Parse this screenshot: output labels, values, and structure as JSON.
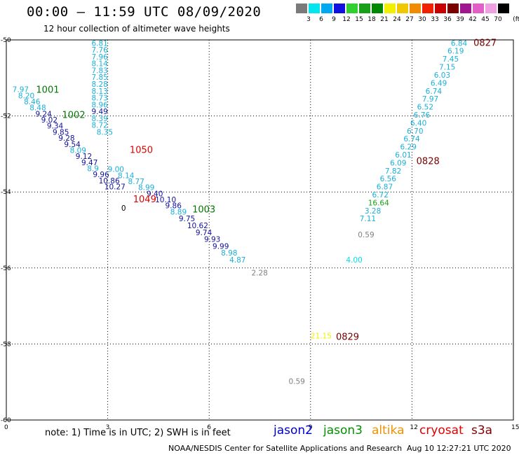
{
  "title": "00:00 – 11:59 UTC 08/09/2020",
  "subtitle": "12 hour collection of altimeter wave heights",
  "color_scale": {
    "unit": "(ft)",
    "labels": [
      "3",
      "6",
      "9",
      "12",
      "15",
      "18",
      "21",
      "24",
      "27",
      "30",
      "33",
      "36",
      "39",
      "42",
      "45",
      "70"
    ],
    "colors": [
      "#7a7a7a",
      "#00e5ee",
      "#00a8f0",
      "#1010e0",
      "#30d030",
      "#18a018",
      "#008800",
      "#f0f000",
      "#f0c800",
      "#f08c00",
      "#f02000",
      "#c80000",
      "#7a0000",
      "#a01890",
      "#e060c8",
      "#f0a0e0",
      "#000000"
    ]
  },
  "map": {
    "x_ticks": [
      "0",
      "3",
      "6",
      "9",
      "12",
      "15"
    ],
    "y_ticks": [
      "-50",
      "-52",
      "-54",
      "-56",
      "-58",
      "-60"
    ],
    "x_range": [
      0,
      15
    ],
    "y_range": [
      -50,
      -60
    ]
  },
  "observations": [
    {
      "v": "6.81",
      "lon": 2.52,
      "lat": -50.08,
      "c": "#1ab0d8"
    },
    {
      "v": "7.76",
      "lon": 2.52,
      "lat": -50.26,
      "c": "#1ab0d8"
    },
    {
      "v": "7.96",
      "lon": 2.52,
      "lat": -50.44,
      "c": "#1ab0d8"
    },
    {
      "v": "8.14",
      "lon": 2.52,
      "lat": -50.62,
      "c": "#1ab0d8"
    },
    {
      "v": "7.83",
      "lon": 2.52,
      "lat": -50.8,
      "c": "#1ab0d8"
    },
    {
      "v": "7.85",
      "lon": 2.52,
      "lat": -50.98,
      "c": "#1ab0d8"
    },
    {
      "v": "8.28",
      "lon": 2.52,
      "lat": -51.16,
      "c": "#1ab0d8"
    },
    {
      "v": "8.13",
      "lon": 2.52,
      "lat": -51.34,
      "c": "#1ab0d8"
    },
    {
      "v": "8.73",
      "lon": 2.52,
      "lat": -51.52,
      "c": "#1ab0d8"
    },
    {
      "v": "8.96",
      "lon": 2.52,
      "lat": -51.7,
      "c": "#1ab0d8"
    },
    {
      "v": "9.49",
      "lon": 2.52,
      "lat": -51.88,
      "c": "#1010a0"
    },
    {
      "v": "8.39",
      "lon": 2.52,
      "lat": -52.06,
      "c": "#1ab0d8"
    },
    {
      "v": "8.72",
      "lon": 2.52,
      "lat": -52.24,
      "c": "#1ab0d8"
    },
    {
      "v": "8.35",
      "lon": 2.67,
      "lat": -52.42,
      "c": "#1ab0d8"
    },
    {
      "v": "7.97",
      "lon": 0.18,
      "lat": -51.3,
      "c": "#1ab0d8"
    },
    {
      "v": "8.20",
      "lon": 0.35,
      "lat": -51.46,
      "c": "#1ab0d8"
    },
    {
      "v": "8.46",
      "lon": 0.52,
      "lat": -51.62,
      "c": "#1ab0d8"
    },
    {
      "v": "8.48",
      "lon": 0.69,
      "lat": -51.78,
      "c": "#1ab0d8"
    },
    {
      "v": "9.24",
      "lon": 0.86,
      "lat": -51.94,
      "c": "#1010a0"
    },
    {
      "v": "9.02",
      "lon": 1.03,
      "lat": -52.1,
      "c": "#1010a0"
    },
    {
      "v": "9.34",
      "lon": 1.2,
      "lat": -52.26,
      "c": "#1010a0"
    },
    {
      "v": "9.85",
      "lon": 1.37,
      "lat": -52.42,
      "c": "#1010a0"
    },
    {
      "v": "9.28",
      "lon": 1.54,
      "lat": -52.58,
      "c": "#1010a0"
    },
    {
      "v": "9.54",
      "lon": 1.71,
      "lat": -52.74,
      "c": "#1010a0"
    },
    {
      "v": "8.09",
      "lon": 1.88,
      "lat": -52.9,
      "c": "#1ab0d8"
    },
    {
      "v": "9.12",
      "lon": 2.05,
      "lat": -53.06,
      "c": "#1010a0"
    },
    {
      "v": "9.47",
      "lon": 2.22,
      "lat": -53.22,
      "c": "#1010a0"
    },
    {
      "v": "8.9",
      "lon": 2.39,
      "lat": -53.38,
      "c": "#1ab0d8"
    },
    {
      "v": "9.96",
      "lon": 2.56,
      "lat": -53.54,
      "c": "#1010a0"
    },
    {
      "v": "10.86",
      "lon": 2.73,
      "lat": -53.7,
      "c": "#1010a0"
    },
    {
      "v": "10.27",
      "lon": 2.9,
      "lat": -53.86,
      "c": "#1010a0"
    },
    {
      "v": "9.00",
      "lon": 3.0,
      "lat": -53.4,
      "c": "#1ab0d8"
    },
    {
      "v": "8.14",
      "lon": 3.3,
      "lat": -53.56,
      "c": "#1ab0d8"
    },
    {
      "v": "8.77",
      "lon": 3.6,
      "lat": -53.72,
      "c": "#1ab0d8"
    },
    {
      "v": "8.99",
      "lon": 3.9,
      "lat": -53.88,
      "c": "#1ab0d8"
    },
    {
      "v": "9.40",
      "lon": 4.15,
      "lat": -54.04,
      "c": "#1010a0"
    },
    {
      "v": "10.10",
      "lon": 4.4,
      "lat": -54.2,
      "c": "#1010a0"
    },
    {
      "v": "9.86",
      "lon": 4.7,
      "lat": -54.36,
      "c": "#1010a0"
    },
    {
      "v": "8.89",
      "lon": 4.85,
      "lat": -54.52,
      "c": "#1ab0d8"
    },
    {
      "v": "9.75",
      "lon": 5.1,
      "lat": -54.7,
      "c": "#1010a0"
    },
    {
      "v": "10.62",
      "lon": 5.35,
      "lat": -54.88,
      "c": "#1010a0"
    },
    {
      "v": "9.74",
      "lon": 5.6,
      "lat": -55.06,
      "c": "#1010a0"
    },
    {
      "v": "9.93",
      "lon": 5.85,
      "lat": -55.24,
      "c": "#1010a0"
    },
    {
      "v": "9.99",
      "lon": 6.1,
      "lat": -55.42,
      "c": "#1010a0"
    },
    {
      "v": "8.98",
      "lon": 6.35,
      "lat": -55.6,
      "c": "#1ab0d8"
    },
    {
      "v": "4.87",
      "lon": 6.6,
      "lat": -55.78,
      "c": "#1ab0d8"
    },
    {
      "v": "2.28",
      "lon": 7.25,
      "lat": -56.12,
      "c": "#808080"
    },
    {
      "v": "6.84",
      "lon": 13.15,
      "lat": -50.08,
      "c": "#1ab0d8"
    },
    {
      "v": "6.19",
      "lon": 13.05,
      "lat": -50.29,
      "c": "#1ab0d8"
    },
    {
      "v": "7.45",
      "lon": 12.9,
      "lat": -50.5,
      "c": "#1ab0d8"
    },
    {
      "v": "7.15",
      "lon": 12.8,
      "lat": -50.71,
      "c": "#1ab0d8"
    },
    {
      "v": "6.03",
      "lon": 12.65,
      "lat": -50.92,
      "c": "#1ab0d8"
    },
    {
      "v": "6.49",
      "lon": 12.55,
      "lat": -51.13,
      "c": "#1ab0d8"
    },
    {
      "v": "6.74",
      "lon": 12.4,
      "lat": -51.34,
      "c": "#1ab0d8"
    },
    {
      "v": "7.97",
      "lon": 12.3,
      "lat": -51.55,
      "c": "#1ab0d8"
    },
    {
      "v": "6.52",
      "lon": 12.15,
      "lat": -51.76,
      "c": "#1ab0d8"
    },
    {
      "v": "6.76",
      "lon": 12.05,
      "lat": -51.97,
      "c": "#1ab0d8"
    },
    {
      "v": "6.40",
      "lon": 11.95,
      "lat": -52.18,
      "c": "#1ab0d8"
    },
    {
      "v": "6.70",
      "lon": 11.85,
      "lat": -52.39,
      "c": "#1ab0d8"
    },
    {
      "v": "6.74",
      "lon": 11.75,
      "lat": -52.6,
      "c": "#1ab0d8"
    },
    {
      "v": "6.29",
      "lon": 11.65,
      "lat": -52.81,
      "c": "#1ab0d8"
    },
    {
      "v": "6.01",
      "lon": 11.5,
      "lat": -53.02,
      "c": "#1ab0d8"
    },
    {
      "v": "6.09",
      "lon": 11.35,
      "lat": -53.23,
      "c": "#1ab0d8"
    },
    {
      "v": "7.82",
      "lon": 11.2,
      "lat": -53.44,
      "c": "#1ab0d8"
    },
    {
      "v": "6.56",
      "lon": 11.05,
      "lat": -53.65,
      "c": "#1ab0d8"
    },
    {
      "v": "6.87",
      "lon": 10.95,
      "lat": -53.86,
      "c": "#1ab0d8"
    },
    {
      "v": "6.72",
      "lon": 10.82,
      "lat": -54.07,
      "c": "#1ab0d8"
    },
    {
      "v": "16.64",
      "lon": 10.7,
      "lat": -54.28,
      "c": "#18a018"
    },
    {
      "v": "3.28",
      "lon": 10.6,
      "lat": -54.49,
      "c": "#1ab0d8"
    },
    {
      "v": "7.11",
      "lon": 10.45,
      "lat": -54.7,
      "c": "#1ab0d8"
    },
    {
      "v": "0.59",
      "lon": 10.4,
      "lat": -55.12,
      "c": "#808080"
    },
    {
      "v": "4.00",
      "lon": 10.05,
      "lat": -55.78,
      "c": "#00e0e8"
    },
    {
      "v": "21.15",
      "lon": 9.0,
      "lat": -57.78,
      "c": "#f0f000"
    },
    {
      "v": "0.59",
      "lon": 8.35,
      "lat": -58.98,
      "c": "#808080"
    },
    {
      "v": "0",
      "lon": 3.4,
      "lat": -54.42,
      "c": "#000000"
    }
  ],
  "pass_labels": [
    {
      "v": "1001",
      "lon": 0.88,
      "lat": -51.3,
      "c": "#007800"
    },
    {
      "v": "1002",
      "lon": 1.65,
      "lat": -51.96,
      "c": "#007800"
    },
    {
      "v": "1050",
      "lon": 3.65,
      "lat": -52.88,
      "c": "#e00000"
    },
    {
      "v": "1049",
      "lon": 3.75,
      "lat": -54.18,
      "c": "#e00000"
    },
    {
      "v": "1003",
      "lon": 5.5,
      "lat": -54.45,
      "c": "#007800"
    },
    {
      "v": "0827",
      "lon": 13.82,
      "lat": -50.06,
      "c": "#780000"
    },
    {
      "v": "0828",
      "lon": 12.13,
      "lat": -53.18,
      "c": "#780000"
    },
    {
      "v": "0829",
      "lon": 9.75,
      "lat": -57.8,
      "c": "#780000"
    }
  ],
  "footer": {
    "note": "note: 1) Time is in UTC; 2) SWH is in feet",
    "satellites": [
      {
        "name": "jason2",
        "color": "#0000c8"
      },
      {
        "name": "jason3",
        "color": "#009000"
      },
      {
        "name": "altika",
        "color": "#f09000"
      },
      {
        "name": "cryosat",
        "color": "#e00000"
      },
      {
        "name": "s3a",
        "color": "#800000"
      }
    ],
    "credit": "NOAA/NESDIS Center for Satellite Applications and Research",
    "timestamp": "Aug 10 12:27:21 UTC 2020"
  }
}
